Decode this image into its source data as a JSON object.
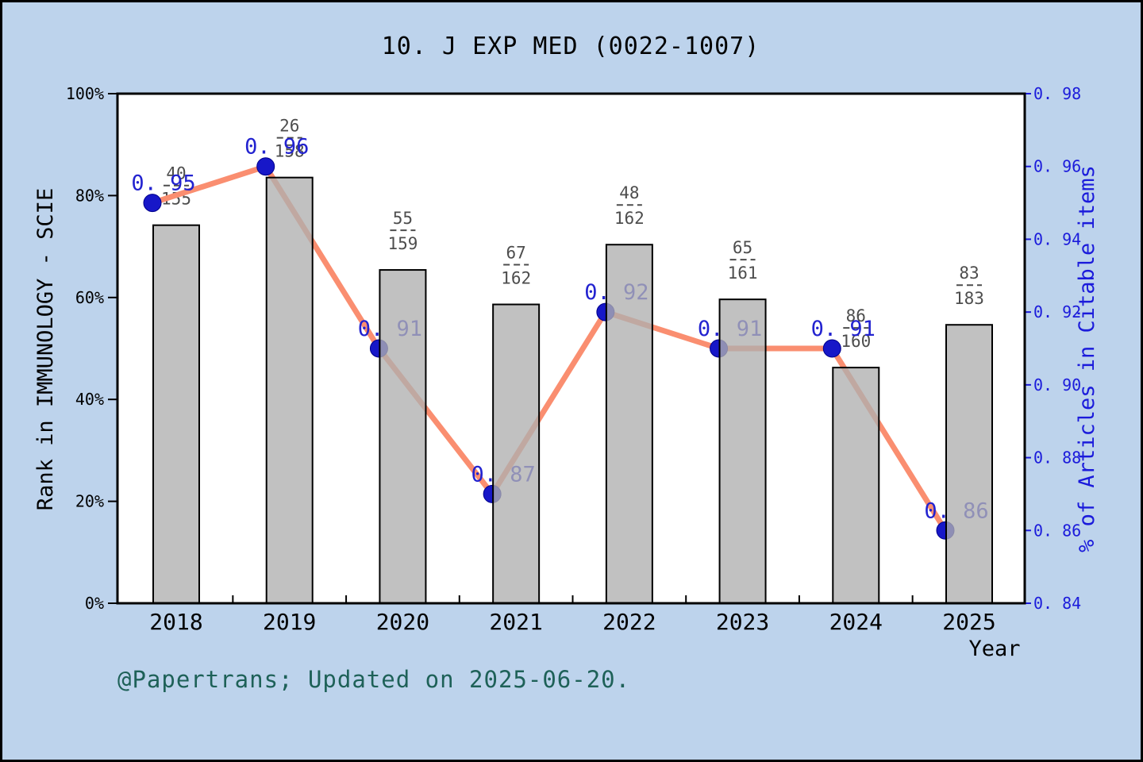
{
  "title": "10. J EXP MED (0022-1007)",
  "caption": "@Papertrans; Updated on 2025-06-20.",
  "colors": {
    "background": "#bdd3ec",
    "plot_background": "#ffffff",
    "frame": "#000000",
    "bar_fill": "#b0b0b0",
    "bar_edge": "#000000",
    "line": "#fa8e70",
    "marker": "#1717c8",
    "value_label": "#2323d0",
    "right_axis": "#1b1bdb",
    "fraction_label": "#4d4d4d",
    "caption_color": "#1e6158",
    "text": "#000000"
  },
  "chart_data": {
    "type": "bar+line",
    "x": [
      2018,
      2019,
      2020,
      2021,
      2022,
      2023,
      2024,
      2025
    ],
    "xlabel": "Year",
    "left_axis": {
      "label": "Rank in IMMUNOLOGY - SCIE",
      "lim": [
        0,
        100
      ],
      "tick_values": [
        0,
        20,
        40,
        60,
        80,
        100
      ],
      "tick_labels": [
        "0%",
        "20%",
        "40%",
        "60%",
        "80%",
        "100%"
      ]
    },
    "right_axis": {
      "label": "% of Articles in Citable items",
      "lim": [
        0.84,
        0.98
      ],
      "tick_values": [
        0.84,
        0.86,
        0.88,
        0.9,
        0.92,
        0.94,
        0.96,
        0.98
      ],
      "tick_labels": [
        "0. 84",
        "0. 86",
        "0. 88",
        "0. 90",
        "0. 92",
        "0. 94",
        "0. 96",
        "0. 98"
      ]
    },
    "series": [
      {
        "name": "rank-bars",
        "type": "bar",
        "axis": "left",
        "values_percent": [
          74.19,
          83.54,
          65.41,
          58.64,
          70.37,
          59.63,
          46.25,
          54.64
        ],
        "fractions": [
          {
            "num": "40",
            "den": "155"
          },
          {
            "num": "26",
            "den": "158"
          },
          {
            "num": "55",
            "den": "159"
          },
          {
            "num": "67",
            "den": "162"
          },
          {
            "num": "48",
            "den": "162"
          },
          {
            "num": "65",
            "den": "161"
          },
          {
            "num": "86",
            "den": "160"
          },
          {
            "num": "83",
            "den": "183"
          }
        ]
      },
      {
        "name": "articles-line",
        "type": "line",
        "axis": "right",
        "values": [
          0.95,
          0.96,
          0.91,
          0.87,
          0.92,
          0.91,
          0.91,
          0.86
        ],
        "labels": [
          "0. 95",
          "0. 96",
          "0. 91",
          "0. 87",
          "0. 92",
          "0. 91",
          "0. 91",
          "0. 86"
        ]
      }
    ],
    "grid": false,
    "legend": "none"
  }
}
